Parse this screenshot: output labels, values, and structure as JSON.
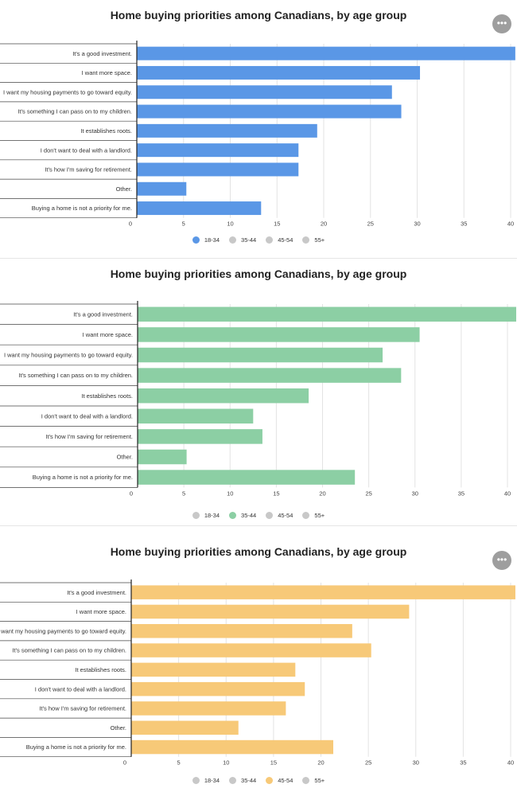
{
  "more_button_icon": "ellipsis-icon",
  "more_button_glyph": "•••",
  "legend_inactive_color": "#c8c8c8",
  "chart_data": [
    {
      "type": "bar",
      "orientation": "horizontal",
      "title": "Home buying priorities among Canadians, by age group",
      "categories": [
        "It's a good investment.",
        "I want more space.",
        "I want my housing payments to go toward equity.",
        "It's something I can pass on to my children.",
        "It establishes roots.",
        "I don't want to deal with a landlord.",
        "It's how I'm saving for retirement.",
        "Other.",
        "Buying a home is not a priority for me."
      ],
      "series": [
        {
          "name": "18-34",
          "values": [
            40.5,
            30.3,
            27.3,
            28.3,
            19.3,
            17.3,
            17.3,
            5.3,
            13.3
          ]
        }
      ],
      "x_ticks": [
        "0",
        "5",
        "10",
        "15",
        "20",
        "25",
        "30",
        "35",
        "40"
      ],
      "xlim": [
        0,
        40
      ],
      "grid": true,
      "legend": [
        "18-34",
        "35-44",
        "45-54",
        "55+"
      ],
      "legend_position": "bottom",
      "active_series": "18-34",
      "color": "#5a97e6",
      "show_more_button": true
    },
    {
      "type": "bar",
      "orientation": "horizontal",
      "title": "Home buying priorities among Canadians, by age group",
      "categories": [
        "It's a good investment.",
        "I want more space.",
        "I want my housing payments to go toward equity.",
        "It's something I can pass on to my children.",
        "It establishes roots.",
        "I don't want to deal with a landlord.",
        "It's how I'm saving for retirement.",
        "Other.",
        "Buying a home is not a priority for me."
      ],
      "series": [
        {
          "name": "35-44",
          "values": [
            42,
            30.5,
            26.5,
            28.5,
            18.5,
            12.5,
            13.5,
            5.3,
            23.5
          ]
        }
      ],
      "x_ticks": [
        "0",
        "5",
        "10",
        "15",
        "20",
        "25",
        "30",
        "35",
        "40"
      ],
      "xlim": [
        0,
        40
      ],
      "grid": true,
      "legend": [
        "18-34",
        "35-44",
        "45-54",
        "55+"
      ],
      "legend_position": "bottom",
      "active_series": "35-44",
      "color": "#8ccfa4",
      "show_more_button": false
    },
    {
      "type": "bar",
      "orientation": "horizontal",
      "title": "Home buying priorities among Canadians, by age group",
      "categories": [
        "It's a good investment.",
        "I want more space.",
        "I want my housing payments to go toward equity.",
        "It's something I can pass on to my children.",
        "It establishes roots.",
        "I don't want to deal with a landlord.",
        "It's how I'm saving for retirement.",
        "Other.",
        "Buying a home is not a priority for me."
      ],
      "series": [
        {
          "name": "45-54",
          "values": [
            40.5,
            29.3,
            23.3,
            25.3,
            17.3,
            18.3,
            16.3,
            11.3,
            21.3
          ]
        }
      ],
      "x_ticks": [
        "0",
        "5",
        "10",
        "15",
        "20",
        "25",
        "30",
        "35",
        "40"
      ],
      "xlim": [
        0,
        40
      ],
      "grid": true,
      "legend": [
        "18-34",
        "35-44",
        "45-54",
        "55+"
      ],
      "legend_position": "bottom",
      "active_series": "45-54",
      "color": "#f7c978",
      "show_more_button": true
    }
  ]
}
